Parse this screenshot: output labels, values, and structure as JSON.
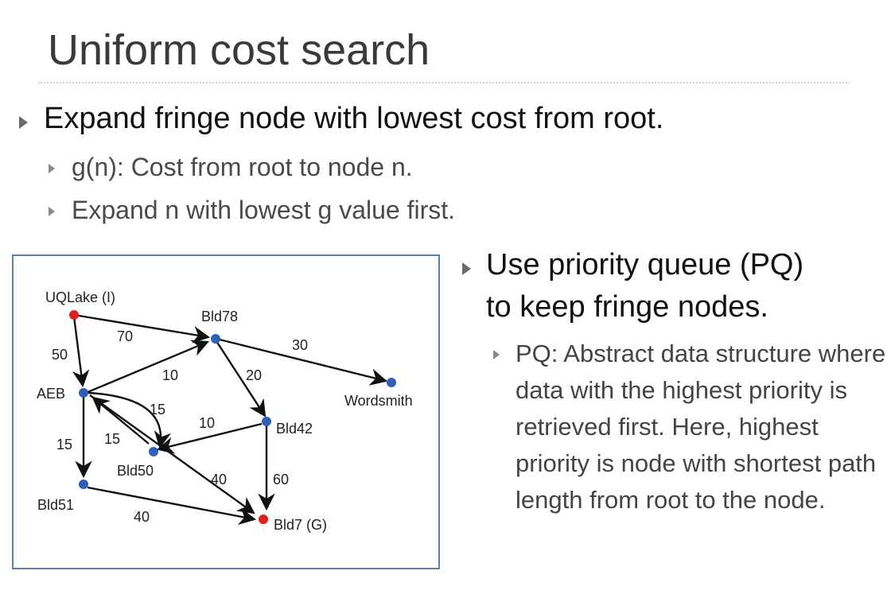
{
  "slide": {
    "title": "Uniform cost search",
    "bullet1": "Expand fringe node with lowest cost from root.",
    "sub1": "g(n): Cost from root to node n.",
    "sub2": "Expand n with lowest g value first.",
    "right_bullet_line1": "Use priority queue (PQ)",
    "right_bullet_line2": "to keep fringe nodes.",
    "right_sub": "PQ: Abstract data structure where data with the highest priority is retrieved first. Here, highest priority is node with shortest path length from root to the node."
  },
  "colors": {
    "start_goal_node": "#e0201c",
    "node": "#2f5fb8",
    "box_border": "#5f7fa0"
  },
  "graph": {
    "nodes": [
      {
        "id": "uqlake",
        "label": "UQLake (I)",
        "type": "start"
      },
      {
        "id": "bld78",
        "label": "Bld78",
        "type": "normal"
      },
      {
        "id": "wordsmith",
        "label": "Wordsmith",
        "type": "normal"
      },
      {
        "id": "aeb",
        "label": "AEB",
        "type": "normal"
      },
      {
        "id": "bld42",
        "label": "Bld42",
        "type": "normal"
      },
      {
        "id": "bld50",
        "label": "Bld50",
        "type": "normal"
      },
      {
        "id": "bld51",
        "label": "Bld51",
        "type": "normal"
      },
      {
        "id": "bld7",
        "label": "Bld7 (G)",
        "type": "goal"
      }
    ],
    "edges": [
      {
        "from": "uqlake",
        "to": "bld78",
        "cost": "70"
      },
      {
        "from": "uqlake",
        "to": "aeb",
        "cost": "50"
      },
      {
        "from": "bld78",
        "to": "wordsmith",
        "cost": "30"
      },
      {
        "from": "aeb",
        "to": "bld78",
        "cost": "10"
      },
      {
        "from": "bld78",
        "to": "bld42",
        "cost": "20"
      },
      {
        "from": "aeb",
        "to": "bld50",
        "cost": "15"
      },
      {
        "from": "bld50",
        "to": "aeb",
        "cost": "15"
      },
      {
        "from": "bld42",
        "to": "bld50",
        "cost": "10"
      },
      {
        "from": "aeb",
        "to": "bld51",
        "cost": "15"
      },
      {
        "from": "aeb",
        "to": "bld7",
        "cost": "40"
      },
      {
        "from": "bld42",
        "to": "bld7",
        "cost": "60"
      },
      {
        "from": "bld51",
        "to": "bld7",
        "cost": "40"
      }
    ]
  }
}
